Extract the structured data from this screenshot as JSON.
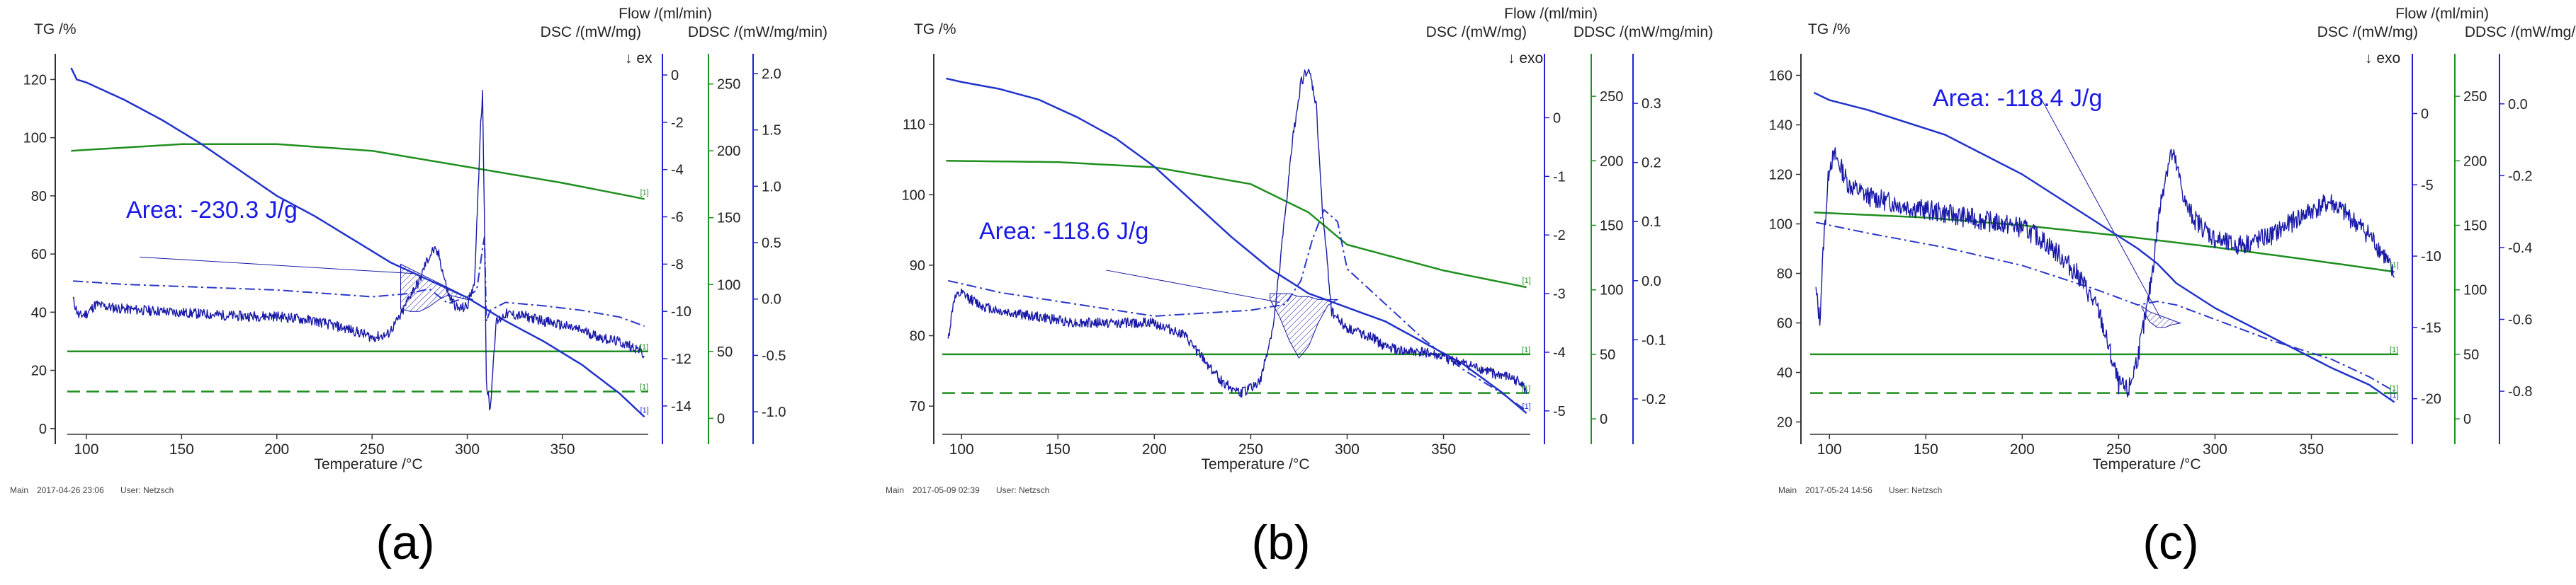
{
  "figure": {
    "background": "#ffffff",
    "colors": {
      "tg": "#2233cc",
      "dsc": "#1a1aa8",
      "flow": "#1f8f1f",
      "flow_dash": "#1f8f1f",
      "ddsc": "#2b37c8",
      "axis_blue": "#2020d0",
      "axis_green": "#1f8f1f",
      "area_text": "#1a1ae6",
      "text": "#222222"
    }
  },
  "chart_data": [
    {
      "type": "line",
      "panel_label": "(a)",
      "xlabel": "Temperature /°C",
      "tg_label": "TG /%",
      "flow_label": "Flow /(ml/min)",
      "dsc_label": "DSC /(mW/mg)",
      "ddsc_label": "DDSC /(mW/mg/min)",
      "exo_label": "↓ ex",
      "area_text": "Area: -230.3 J/g",
      "footer_main": "Main",
      "footer_date": "2017-04-26 23:06",
      "footer_user": "User: Netzsch",
      "xlim": [
        90,
        395
      ],
      "xticks": [
        100,
        150,
        200,
        250,
        300,
        350
      ],
      "tg_ylim": [
        -2,
        124
      ],
      "tg_ticks": [
        0,
        20,
        40,
        60,
        80,
        100,
        120
      ],
      "dsc_ylim": [
        -15.2,
        0.3
      ],
      "dsc_ticks": [
        0,
        -2,
        -4,
        -6,
        -8,
        -10,
        -12,
        -14
      ],
      "flow_ylim": [
        -12,
        262
      ],
      "flow_ticks": [
        0,
        50,
        100,
        150,
        200,
        250
      ],
      "ddsc_ylim": [
        -1.2,
        2.05
      ],
      "ddsc_ticks": [
        2.0,
        1.5,
        1.0,
        0.5,
        0.0,
        -0.5,
        -1.0
      ],
      "tg_curve": {
        "x": [
          92,
          95,
          100,
          110,
          120,
          140,
          160,
          180,
          200,
          220,
          240,
          260,
          280,
          300,
          320,
          340,
          360,
          380,
          393
        ],
        "y": [
          124,
          120,
          119,
          116,
          113,
          106,
          98,
          89,
          80,
          73,
          65,
          57,
          51,
          45,
          37,
          30,
          22,
          12,
          4
        ]
      },
      "dsc_curve": {
        "x": [
          93,
          96,
          100,
          105,
          110,
          120,
          140,
          160,
          180,
          200,
          220,
          240,
          250,
          258,
          265,
          270,
          275,
          278,
          282,
          285,
          290,
          295,
          300,
          304,
          307,
          308,
          309,
          310,
          312,
          315,
          320,
          330,
          340,
          350,
          360,
          370,
          380,
          390,
          393
        ],
        "y": [
          -9.5,
          -10.2,
          -10.1,
          -9.7,
          -9.8,
          -9.9,
          -10.0,
          -10.1,
          -10.2,
          -10.2,
          -10.4,
          -10.8,
          -11.1,
          -11.0,
          -10.2,
          -9.3,
          -8.7,
          -8.0,
          -7.4,
          -7.6,
          -9.3,
          -9.9,
          -9.8,
          -8.6,
          -2.0,
          -0.8,
          -6.0,
          -13.0,
          -14.2,
          -10.5,
          -10.1,
          -10.2,
          -10.4,
          -10.6,
          -10.8,
          -11.1,
          -11.3,
          -11.6,
          -11.9
        ]
      },
      "ddsc_curve": {
        "x": [
          93,
          120,
          200,
          250,
          270,
          280,
          290,
          300,
          305,
          308,
          309,
          310,
          312,
          320,
          340,
          360,
          380,
          393
        ],
        "y": [
          0.16,
          0.13,
          0.08,
          0.02,
          0.05,
          0.09,
          -0.04,
          0.02,
          0.08,
          0.45,
          0.55,
          -0.2,
          -0.1,
          -0.03,
          -0.06,
          -0.1,
          -0.16,
          -0.24
        ]
      },
      "flow_curve": {
        "x": [
          92,
          150,
          200,
          250,
          300,
          350,
          393
        ],
        "y": [
          200,
          205,
          205,
          200,
          188,
          176,
          164
        ]
      },
      "flow_line_solid": 50,
      "flow_line_dashed": 20,
      "area_polygon": {
        "x": [
          265,
          270,
          275,
          280,
          285,
          290,
          295,
          300,
          303
        ],
        "upper": [
          -8.0,
          -8.2,
          -8.4,
          -8.6,
          -8.8,
          -9.0,
          -9.2,
          -9.4,
          -9.5
        ],
        "lower": [
          -9.9,
          -10.0,
          -10.0,
          -9.8,
          -9.5,
          -9.3,
          -9.4,
          -9.5,
          -9.5
        ]
      },
      "area_leader": {
        "from_x": 128,
        "from_y": -7.7,
        "to_x": 272,
        "to_y": -8.4
      }
    },
    {
      "type": "line",
      "panel_label": "(b)",
      "xlabel": "Temperature /°C",
      "tg_label": "TG /%",
      "flow_label": "Flow /(ml/min)",
      "dsc_label": "DSC /(mW/mg)",
      "ddsc_label": "DDSC /(mW/mg/min)",
      "exo_label": "↓ exo",
      "area_text": "Area: -118.6 J/g",
      "footer_main": "Main",
      "footer_date": "2017-05-09 02:39",
      "footer_user": "User: Netzsch",
      "xlim": [
        90,
        395
      ],
      "xticks": [
        100,
        150,
        200,
        250,
        300,
        350
      ],
      "tg_ylim": [
        66,
        118
      ],
      "tg_ticks": [
        70,
        80,
        90,
        100,
        110
      ],
      "dsc_ylim": [
        -5.4,
        0.85
      ],
      "dsc_ticks": [
        0,
        -1,
        -2,
        -3,
        -4,
        -5
      ],
      "flow_ylim": [
        -12,
        272
      ],
      "flow_ticks": [
        0,
        50,
        100,
        150,
        200,
        250
      ],
      "ddsc_ylim": [
        -0.26,
        0.36
      ],
      "ddsc_ticks": [
        0.3,
        0.2,
        0.1,
        0.0,
        -0.1,
        -0.2
      ],
      "tg_curve": {
        "x": [
          92,
          100,
          120,
          140,
          160,
          180,
          200,
          220,
          240,
          260,
          280,
          300,
          320,
          340,
          360,
          380,
          393
        ],
        "y": [
          116.5,
          116,
          115,
          113.5,
          111,
          108,
          104,
          99,
          94,
          89.5,
          86,
          84,
          82,
          79,
          76,
          72,
          69
        ]
      },
      "dsc_curve": {
        "x": [
          93,
          96,
          100,
          105,
          110,
          120,
          140,
          160,
          180,
          200,
          215,
          225,
          235,
          245,
          255,
          262,
          268,
          272,
          276,
          279,
          281,
          284,
          287,
          292,
          300,
          310,
          320,
          330,
          340,
          350,
          360,
          370,
          380,
          390,
          393
        ],
        "y": [
          -3.8,
          -3.1,
          -3.0,
          -3.1,
          -3.2,
          -3.3,
          -3.4,
          -3.5,
          -3.5,
          -3.5,
          -3.7,
          -4.1,
          -4.5,
          -4.7,
          -4.5,
          -3.5,
          -1.6,
          -0.3,
          0.6,
          0.8,
          0.7,
          0.2,
          -1.5,
          -3.3,
          -3.6,
          -3.7,
          -3.9,
          -4.0,
          -4.0,
          -4.1,
          -4.2,
          -4.3,
          -4.4,
          -4.5,
          -4.7
        ]
      },
      "ddsc_curve": {
        "x": [
          93,
          120,
          200,
          250,
          268,
          276,
          282,
          288,
          295,
          300,
          320,
          340,
          360,
          380,
          393
        ],
        "y": [
          0.0,
          -0.02,
          -0.06,
          -0.05,
          -0.04,
          0.0,
          0.07,
          0.12,
          0.1,
          0.02,
          -0.04,
          -0.1,
          -0.15,
          -0.19,
          -0.22
        ]
      },
      "flow_curve": {
        "x": [
          92,
          150,
          200,
          250,
          280,
          300,
          350,
          393
        ],
        "y": [
          200,
          199,
          195,
          182,
          160,
          135,
          115,
          102
        ]
      },
      "flow_line_solid": 50,
      "flow_line_dashed": 20,
      "area_polygon": {
        "x": [
          260,
          265,
          270,
          275,
          280,
          285,
          290,
          295
        ],
        "upper": [
          -3.0,
          -3.0,
          -3.0,
          -3.05,
          -3.05,
          -3.1,
          -3.1,
          -3.1
        ],
        "lower": [
          -3.1,
          -3.4,
          -3.8,
          -4.1,
          -3.9,
          -3.5,
          -3.2,
          -3.1
        ]
      },
      "area_leader": {
        "from_x": 175,
        "from_y": -2.6,
        "to_x": 265,
        "to_y": -3.15
      }
    },
    {
      "type": "line",
      "panel_label": "(c)",
      "xlabel": "Temperature /°C",
      "tg_label": "TG /%",
      "flow_label": "Flow /(ml/min)",
      "dsc_label": "DSC /(mW/mg)",
      "ddsc_label": "DDSC /(mW/mg/min)",
      "exo_label": "↓ exo",
      "area_text": "Area: -118.4 J/g",
      "footer_main": "Main",
      "footer_date": "2017-05-24 14:56",
      "footer_user": "User: Netzsch",
      "xlim": [
        90,
        395
      ],
      "xticks": [
        100,
        150,
        200,
        250,
        300,
        350
      ],
      "tg_ylim": [
        15,
        163
      ],
      "tg_ticks": [
        20,
        40,
        60,
        80,
        100,
        120,
        140,
        160
      ],
      "dsc_ylim": [
        -22.5,
        3.2
      ],
      "dsc_ticks": [
        0,
        -5,
        -10,
        -15,
        -20
      ],
      "flow_ylim": [
        -12,
        272
      ],
      "flow_ticks": [
        0,
        50,
        100,
        150,
        200,
        250
      ],
      "ddsc_ylim": [
        -0.92,
        0.1
      ],
      "ddsc_ticks": [
        0.0,
        -0.2,
        -0.4,
        -0.6,
        -0.8
      ],
      "tg_curve": {
        "x": [
          92,
          100,
          120,
          140,
          160,
          180,
          200,
          220,
          240,
          260,
          270,
          280,
          300,
          320,
          340,
          360,
          380,
          393
        ],
        "y": [
          153,
          150,
          146,
          141,
          136,
          128,
          120,
          110,
          100,
          90,
          84,
          76,
          66,
          58,
          50,
          42,
          35,
          28
        ]
      },
      "dsc_curve": {
        "x": [
          93,
          95,
          97,
          100,
          103,
          106,
          110,
          120,
          140,
          160,
          180,
          200,
          210,
          220,
          230,
          240,
          245,
          250,
          255,
          260,
          265,
          268,
          271,
          274,
          277,
          279,
          282,
          285,
          290,
          300,
          310,
          320,
          330,
          340,
          350,
          360,
          370,
          380,
          388,
          393
        ],
        "y": [
          -12.5,
          -14.5,
          -9.0,
          -3.5,
          -3.0,
          -3.8,
          -5.0,
          -5.8,
          -6.5,
          -7.0,
          -7.5,
          -8.0,
          -8.8,
          -10.0,
          -11.5,
          -14.0,
          -16.5,
          -19.0,
          -19.5,
          -17.0,
          -13.5,
          -10.5,
          -7.0,
          -4.5,
          -2.8,
          -3.2,
          -4.8,
          -6.5,
          -7.5,
          -8.8,
          -9.3,
          -9.0,
          -8.5,
          -7.6,
          -6.8,
          -6.2,
          -7.3,
          -8.5,
          -10.0,
          -11.5
        ]
      },
      "ddsc_curve": {
        "x": [
          93,
          120,
          160,
          200,
          240,
          260,
          270,
          280,
          300,
          330,
          360,
          380,
          393
        ],
        "y": [
          -0.33,
          -0.36,
          -0.4,
          -0.45,
          -0.52,
          -0.56,
          -0.55,
          -0.56,
          -0.6,
          -0.66,
          -0.71,
          -0.76,
          -0.8
        ]
      },
      "flow_curve": {
        "x": [
          92,
          150,
          200,
          250,
          300,
          350,
          393
        ],
        "y": [
          160,
          156,
          150,
          142,
          133,
          123,
          114
        ]
      },
      "flow_line_solid": 50,
      "flow_line_dashed": 20,
      "area_polygon": {
        "x": [
          262,
          266,
          270,
          274,
          278,
          282
        ],
        "upper": [
          -13.5,
          -13.9,
          -14.1,
          -14.3,
          -14.5,
          -14.7
        ],
        "lower": [
          -13.6,
          -14.6,
          -15.0,
          -15.0,
          -14.8,
          -14.7
        ]
      },
      "area_leader": {
        "from_x": 210,
        "from_y": 1.0,
        "to_x": 272,
        "to_y": -14.4
      }
    }
  ]
}
